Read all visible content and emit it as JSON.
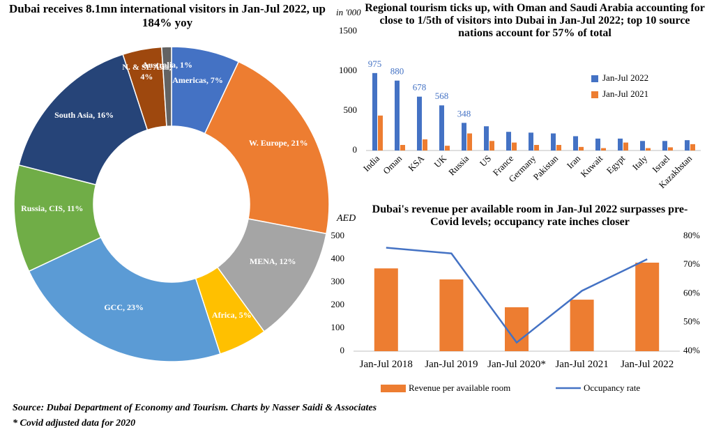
{
  "chart_data": [
    {
      "type": "pie",
      "title": "Dubai receives 8.1mn international visitors in Jan-Jul 2022, up 184% yoy",
      "labels": [
        "Americas, 7%",
        "W. Europe, 21%",
        "MENA, 12%",
        "Africa, 5%",
        "GCC, 23%",
        "Russia, CIS, 11%",
        "South Asia, 16%",
        "N. & SE Asia, 4%",
        "Australia, 1%"
      ],
      "values": [
        7,
        21,
        12,
        5,
        23,
        11,
        16,
        4,
        1
      ],
      "colors": [
        "#4472c4",
        "#ed7d31",
        "#a5a5a5",
        "#ffc000",
        "#5b9bd5",
        "#70ad47",
        "#264478",
        "#9e480e",
        "#636363"
      ]
    },
    {
      "type": "bar",
      "title": "Regional tourism ticks up, with Oman and Saudi Arabia accounting for close to 1/5th of visitors into Dubai in Jan-Jul 2022; top 10 source nations account for 57% of total",
      "y_label": "in '000",
      "categories": [
        "India",
        "Oman",
        "KSA",
        "UK",
        "Russia",
        "US",
        "France",
        "Germany",
        "Pakistan",
        "Iran",
        "Kuwait",
        "Egypt",
        "Italy",
        "Israel",
        "Kazakhstan"
      ],
      "series": [
        {
          "name": "Jan-Jul 2022",
          "color": "#4472c4",
          "values": [
            975,
            880,
            678,
            568,
            348,
            305,
            235,
            225,
            215,
            180,
            150,
            150,
            120,
            120,
            130
          ],
          "value_labels": [
            "975",
            "880",
            "678",
            "568",
            "348",
            null,
            null,
            null,
            null,
            null,
            null,
            null,
            null,
            null,
            null
          ]
        },
        {
          "name": "Jan-Jul 2021",
          "color": "#ed7d31",
          "values": [
            440,
            70,
            140,
            60,
            215,
            120,
            100,
            70,
            70,
            45,
            30,
            100,
            30,
            40,
            80
          ]
        }
      ],
      "ylim": [
        0,
        1500
      ],
      "yticks": [
        0,
        500,
        1000,
        1500
      ],
      "legend": "upper right"
    },
    {
      "type": "combo",
      "title": "Dubai's revenue per available room in Jan-Jul 2022 surpasses pre-Covid levels; occupancy rate inches closer",
      "y_label": "AED",
      "categories": [
        "Jan-Jul 2018",
        "Jan-Jul 2019",
        "Jan-Jul 2020*",
        "Jan-Jul 2021",
        "Jan-Jul 2022"
      ],
      "series": [
        {
          "name": "Revenue per available room",
          "color": "#ed7d31",
          "kind": "bar",
          "values": [
            360,
            312,
            191,
            224,
            385
          ]
        },
        {
          "name": "Occupancy rate",
          "color": "#4472c4",
          "kind": "line",
          "axis": "y2",
          "values": [
            76,
            74,
            43,
            61,
            72
          ]
        }
      ],
      "ylim": [
        0,
        500
      ],
      "yticks": [
        0,
        100,
        200,
        300,
        400,
        500
      ],
      "y2lim": [
        40,
        80
      ],
      "y2ticks": [
        {
          "value": 40,
          "label": "40%"
        },
        {
          "value": 50,
          "label": "50%"
        },
        {
          "value": 60,
          "label": "60%"
        },
        {
          "value": 70,
          "label": "70%"
        },
        {
          "value": 80,
          "label": "80%"
        }
      ],
      "legend": "bottom"
    }
  ],
  "footer": {
    "source": "Source: Dubai Department of Economy and Tourism. Charts by Nasser Saidi & Associates",
    "note": "* Covid adjusted data for 2020"
  }
}
